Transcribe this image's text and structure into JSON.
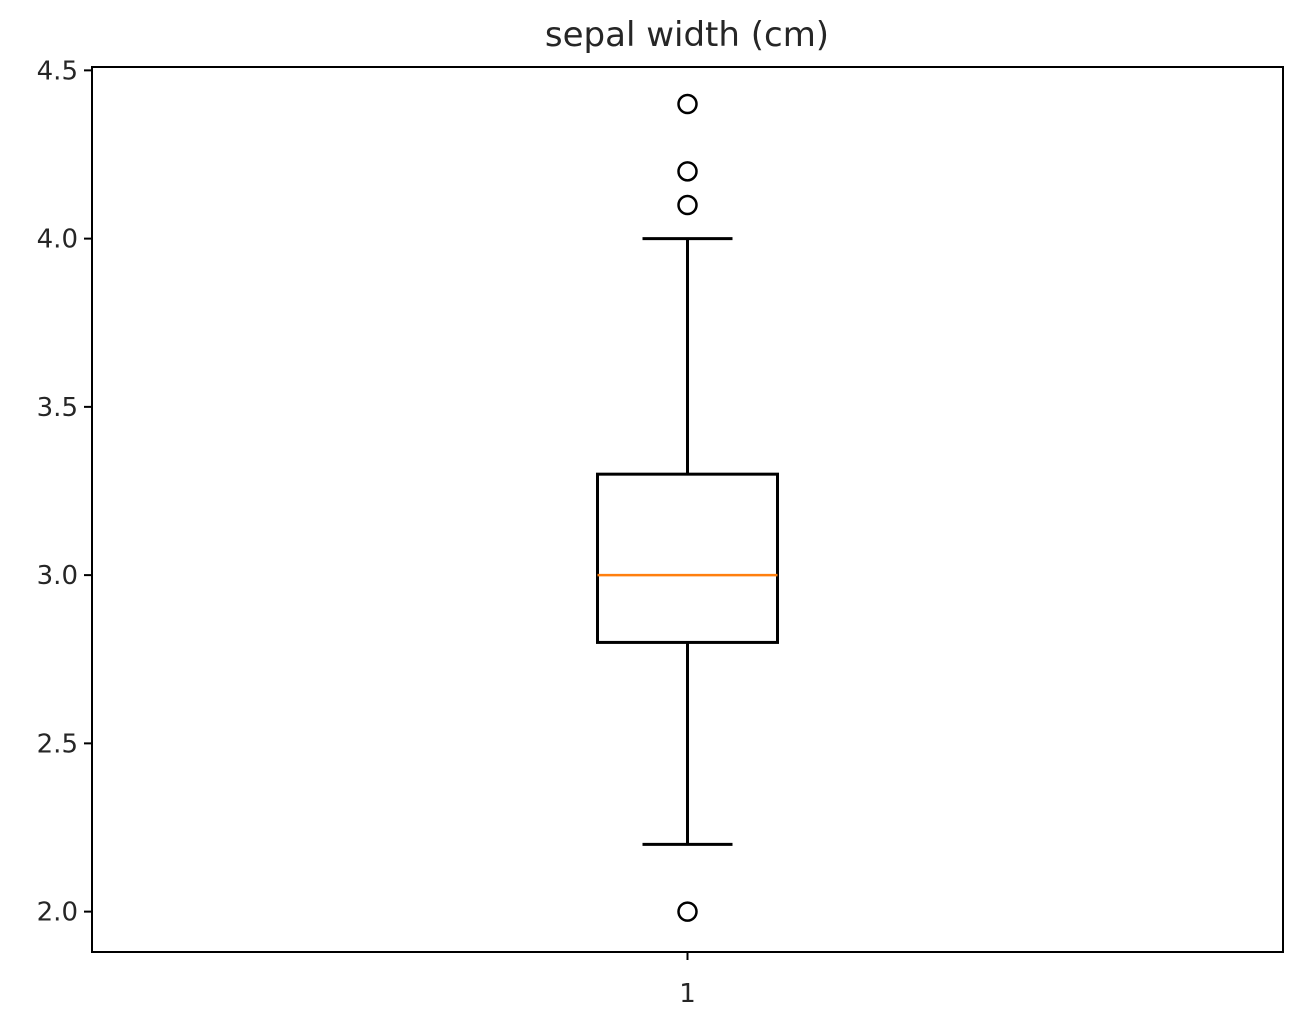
{
  "chart_data": {
    "type": "box",
    "title": "sepal width (cm)",
    "xlabel": "",
    "ylabel": "",
    "categories": [
      "1"
    ],
    "ylim": [
      1.88,
      4.51
    ],
    "yticks": [
      "2.0",
      "2.5",
      "3.0",
      "3.5",
      "4.0",
      "4.5"
    ],
    "grid": false,
    "box": {
      "q1": 2.8,
      "median": 3.0,
      "q3": 3.3,
      "whisker_low": 2.2,
      "whisker_high": 4.0,
      "outliers": [
        2.0,
        4.1,
        4.2,
        4.4
      ]
    },
    "colors": {
      "median": "#ff7f0e",
      "box": "#000000"
    }
  }
}
